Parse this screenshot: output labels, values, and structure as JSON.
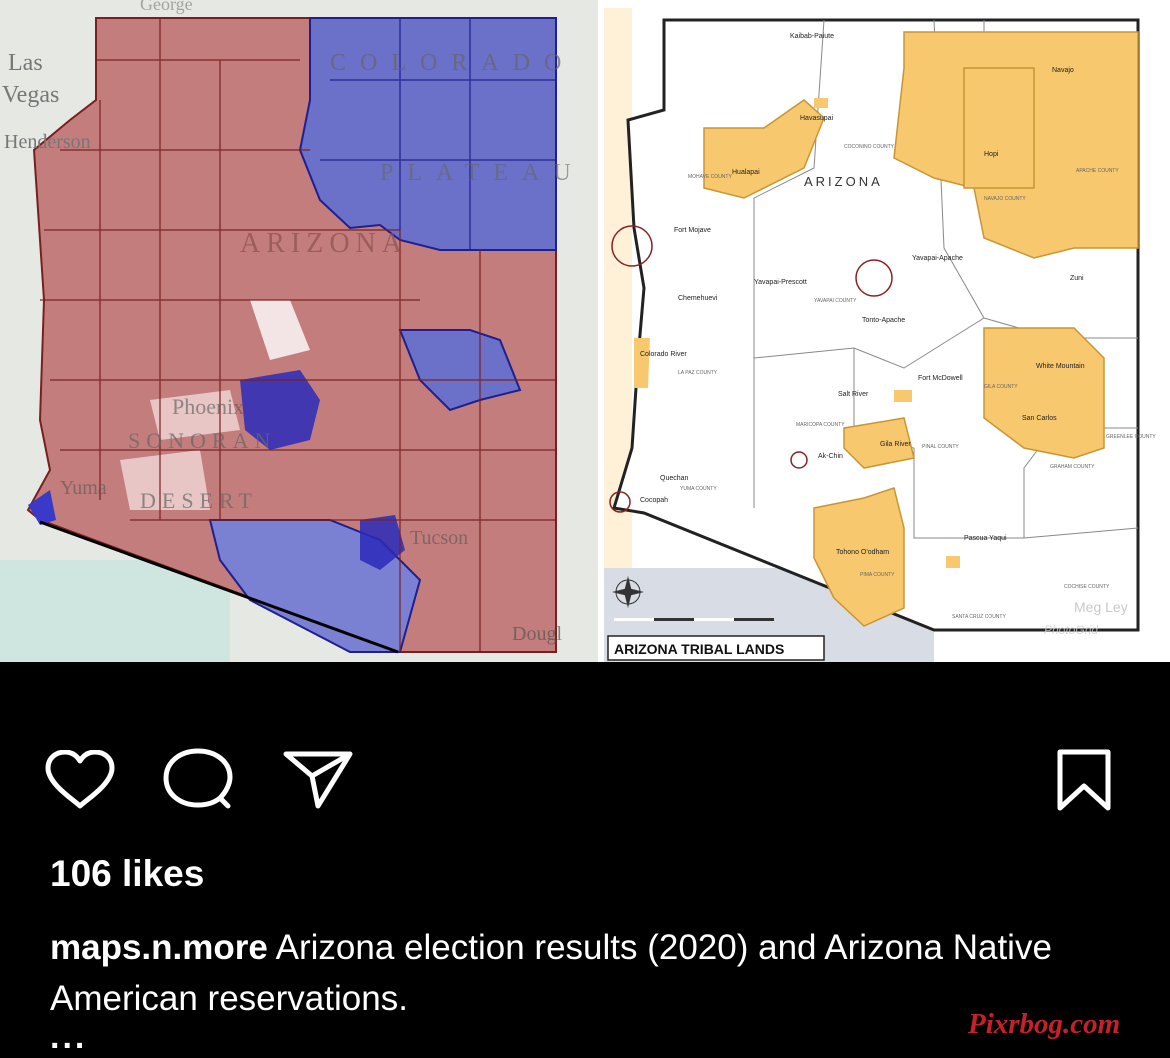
{
  "election_map": {
    "labels": [
      "Las",
      "Vegas",
      "Henderson",
      "COLORADO",
      "PLATEAU",
      "ARIZONA",
      "Phoenix",
      "SONORAN",
      "DESERT",
      "Yuma",
      "Tucson",
      "Dougl",
      "George"
    ]
  },
  "tribal_map": {
    "state_label": "ARIZONA",
    "legend_title": "ARIZONA TRIBAL LANDS",
    "watermark_name": "Meg Ley",
    "watermark_sub": "PhotoGrid",
    "reservations": [
      "Kaibab-Paiute",
      "Navajo",
      "Havasupai",
      "Hopi",
      "Hualapai",
      "Fort Mojave",
      "Chemehuevi",
      "Colorado River",
      "Yavapai-Prescott",
      "Yavapai-Apache",
      "Tonto-Apache",
      "Fort McDowell",
      "Salt River",
      "White Mountain",
      "San Carlos",
      "Zuni",
      "Gila River",
      "Ak-Chin",
      "Tohono O'odham",
      "Quechan",
      "Cocopah",
      "Pascua Yaqui"
    ],
    "counties": [
      "COCONINO COUNTY",
      "MOHAVE COUNTY",
      "NAVAJO COUNTY",
      "APACHE COUNTY",
      "YAVAPAI COUNTY",
      "LA PAZ COUNTY",
      "MARICOPA COUNTY",
      "GILA COUNTY",
      "PINAL COUNTY",
      "GREENLEE COUNTY",
      "GRAHAM COUNTY",
      "YUMA COUNTY",
      "PIMA COUNTY",
      "SANTA CRUZ COUNTY",
      "COCHISE COUNTY"
    ],
    "colors": {
      "reservation": "#f8c86e",
      "border": "#222222"
    }
  },
  "colors": {
    "republican": "#b24a4a",
    "democrat": "#3a3ac8",
    "background": "#000000"
  },
  "icons": {
    "like": "heart-icon",
    "comment": "comment-icon",
    "share": "paper-plane-icon",
    "save": "bookmark-icon"
  },
  "post": {
    "likes": "106 likes",
    "username": "maps.n.more",
    "caption": " Arizona election results (2020) and Arizona Native American reservations.",
    "more": "..."
  },
  "watermark": "Pixrbog.com"
}
